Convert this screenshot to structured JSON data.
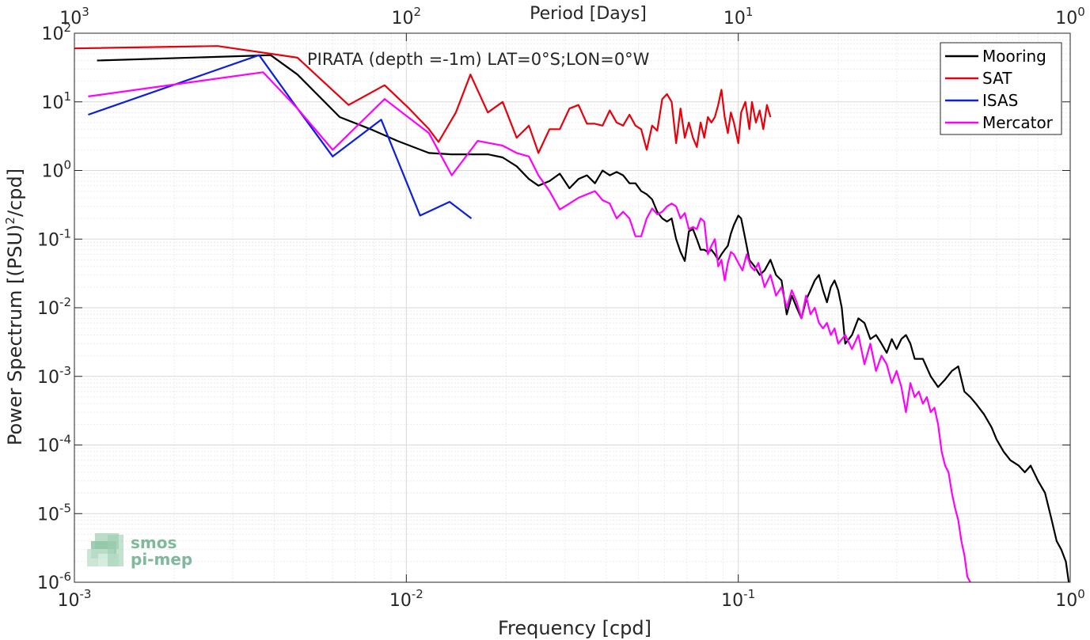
{
  "chart_data": {
    "type": "line",
    "title": "PIRATA (depth =-1m) LAT=0°S;LON=0°W",
    "xlabel": "Frequency [cpd]",
    "ylabel_main": "Power Spectrum [(PSU)",
    "ylabel_sup": "2",
    "ylabel_tail": "/cpd]",
    "top_xlabel": "Period [Days]",
    "x_scale": "log",
    "y_scale": "log",
    "xlim": [
      0.001,
      1
    ],
    "ylim": [
      1e-06,
      100
    ],
    "grid": true,
    "legend_position": "top-right",
    "x_ticks": [
      {
        "value": 0.001,
        "base": "10",
        "exp": "-3"
      },
      {
        "value": 0.01,
        "base": "10",
        "exp": "-2"
      },
      {
        "value": 0.1,
        "base": "10",
        "exp": "-1"
      },
      {
        "value": 1,
        "base": "10",
        "exp": "0"
      }
    ],
    "top_ticks": [
      {
        "value": 0.001,
        "base": "10",
        "exp": "3"
      },
      {
        "value": 0.01,
        "base": "10",
        "exp": "2"
      },
      {
        "value": 0.1,
        "base": "10",
        "exp": "1"
      },
      {
        "value": 1,
        "base": "10",
        "exp": "0"
      }
    ],
    "y_ticks": [
      {
        "value": 100,
        "base": "10",
        "exp": "2"
      },
      {
        "value": 10,
        "base": "10",
        "exp": "1"
      },
      {
        "value": 1,
        "base": "10",
        "exp": "0"
      },
      {
        "value": 0.1,
        "base": "10",
        "exp": "-1"
      },
      {
        "value": 0.01,
        "base": "10",
        "exp": "-2"
      },
      {
        "value": 0.001,
        "base": "10",
        "exp": "-3"
      },
      {
        "value": 0.0001,
        "base": "10",
        "exp": "-4"
      },
      {
        "value": 1e-05,
        "base": "10",
        "exp": "-5"
      },
      {
        "value": 1e-06,
        "base": "10",
        "exp": "-6"
      }
    ],
    "series": [
      {
        "name": "Mooring",
        "color": "#000000",
        "points": [
          [
            0.00117,
            40
          ],
          [
            0.0035,
            47
          ],
          [
            0.0039,
            48
          ],
          [
            0.0047,
            25
          ],
          [
            0.0063,
            6
          ],
          [
            0.0078,
            4
          ],
          [
            0.0094,
            2.7
          ],
          [
            0.0117,
            1.8
          ],
          [
            0.0137,
            1.72
          ],
          [
            0.0156,
            1.72
          ],
          [
            0.0176,
            1.72
          ],
          [
            0.0195,
            1.55
          ],
          [
            0.0215,
            1.15
          ],
          [
            0.0234,
            0.75
          ],
          [
            0.025,
            0.6
          ],
          [
            0.027,
            0.7
          ],
          [
            0.029,
            0.9
          ],
          [
            0.031,
            0.55
          ],
          [
            0.033,
            0.75
          ],
          [
            0.035,
            0.85
          ],
          [
            0.037,
            0.65
          ],
          [
            0.039,
            1.0
          ],
          [
            0.041,
            0.85
          ],
          [
            0.043,
            0.95
          ],
          [
            0.045,
            0.85
          ],
          [
            0.047,
            0.65
          ],
          [
            0.049,
            0.65
          ],
          [
            0.051,
            0.5
          ],
          [
            0.053,
            0.45
          ],
          [
            0.055,
            0.38
          ],
          [
            0.057,
            0.25
          ],
          [
            0.059,
            0.2
          ],
          [
            0.061,
            0.18
          ],
          [
            0.063,
            0.2
          ],
          [
            0.065,
            0.1
          ],
          [
            0.067,
            0.065
          ],
          [
            0.069,
            0.048
          ],
          [
            0.071,
            0.13
          ],
          [
            0.073,
            0.14
          ],
          [
            0.075,
            0.1
          ],
          [
            0.077,
            0.07
          ],
          [
            0.079,
            0.07
          ],
          [
            0.081,
            0.065
          ],
          [
            0.083,
            0.07
          ],
          [
            0.085,
            0.06
          ],
          [
            0.087,
            0.05
          ],
          [
            0.089,
            0.06
          ],
          [
            0.091,
            0.07
          ],
          [
            0.093,
            0.08
          ],
          [
            0.095,
            0.12
          ],
          [
            0.097,
            0.16
          ],
          [
            0.1,
            0.22
          ],
          [
            0.102,
            0.2
          ],
          [
            0.105,
            0.1
          ],
          [
            0.108,
            0.05
          ],
          [
            0.112,
            0.04
          ],
          [
            0.116,
            0.03
          ],
          [
            0.12,
            0.035
          ],
          [
            0.125,
            0.05
          ],
          [
            0.13,
            0.03
          ],
          [
            0.135,
            0.025
          ],
          [
            0.14,
            0.008
          ],
          [
            0.145,
            0.015
          ],
          [
            0.15,
            0.01
          ],
          [
            0.155,
            0.007
          ],
          [
            0.16,
            0.013
          ],
          [
            0.165,
            0.018
          ],
          [
            0.17,
            0.025
          ],
          [
            0.175,
            0.03
          ],
          [
            0.18,
            0.018
          ],
          [
            0.185,
            0.012
          ],
          [
            0.19,
            0.02
          ],
          [
            0.195,
            0.025
          ],
          [
            0.2,
            0.018
          ],
          [
            0.205,
            0.01
          ],
          [
            0.21,
            0.003
          ],
          [
            0.22,
            0.004
          ],
          [
            0.23,
            0.007
          ],
          [
            0.24,
            0.006
          ],
          [
            0.25,
            0.0035
          ],
          [
            0.26,
            0.004
          ],
          [
            0.27,
            0.003
          ],
          [
            0.28,
            0.0022
          ],
          [
            0.29,
            0.0035
          ],
          [
            0.3,
            0.0025
          ],
          [
            0.31,
            0.0035
          ],
          [
            0.32,
            0.004
          ],
          [
            0.33,
            0.003
          ],
          [
            0.34,
            0.0018
          ],
          [
            0.36,
            0.0018
          ],
          [
            0.38,
            0.001
          ],
          [
            0.4,
            0.0007
          ],
          [
            0.42,
            0.0009
          ],
          [
            0.44,
            0.0012
          ],
          [
            0.46,
            0.0014
          ],
          [
            0.48,
            0.0006
          ],
          [
            0.5,
            0.0005
          ],
          [
            0.52,
            0.0004
          ],
          [
            0.55,
            0.00028
          ],
          [
            0.58,
            0.00018
          ],
          [
            0.6,
            0.00012
          ],
          [
            0.63,
            8e-05
          ],
          [
            0.66,
            6e-05
          ],
          [
            0.7,
            5e-05
          ],
          [
            0.73,
            4e-05
          ],
          [
            0.76,
            5e-05
          ],
          [
            0.8,
            3e-05
          ],
          [
            0.84,
            2e-05
          ],
          [
            0.88,
            8e-06
          ],
          [
            0.91,
            4e-06
          ],
          [
            0.94,
            3e-06
          ],
          [
            0.97,
            2e-06
          ],
          [
            0.99,
            1e-06
          ]
        ]
      },
      {
        "name": "SAT",
        "color": "#e8000b",
        "points": [
          [
            0.001,
            60
          ],
          [
            0.0027,
            65
          ],
          [
            0.0047,
            44
          ],
          [
            0.0067,
            9
          ],
          [
            0.0086,
            17.5
          ],
          [
            0.0102,
            8
          ],
          [
            0.0117,
            4
          ],
          [
            0.0125,
            2.6
          ],
          [
            0.0141,
            7
          ],
          [
            0.0156,
            25
          ],
          [
            0.0176,
            7
          ],
          [
            0.0195,
            10
          ],
          [
            0.0215,
            3
          ],
          [
            0.0234,
            4.5
          ],
          [
            0.025,
            1.8
          ],
          [
            0.027,
            4
          ],
          [
            0.029,
            4
          ],
          [
            0.031,
            8
          ],
          [
            0.033,
            9
          ],
          [
            0.035,
            4.8
          ],
          [
            0.037,
            4.8
          ],
          [
            0.039,
            4.5
          ],
          [
            0.041,
            7.5
          ],
          [
            0.043,
            5
          ],
          [
            0.045,
            4.5
          ],
          [
            0.047,
            6.5
          ],
          [
            0.049,
            4.5
          ],
          [
            0.051,
            4
          ],
          [
            0.053,
            2
          ],
          [
            0.055,
            4.5
          ],
          [
            0.057,
            3.8
          ],
          [
            0.059,
            11
          ],
          [
            0.061,
            13
          ],
          [
            0.063,
            10
          ],
          [
            0.065,
            2.5
          ],
          [
            0.067,
            8
          ],
          [
            0.069,
            3
          ],
          [
            0.071,
            5
          ],
          [
            0.073,
            3
          ],
          [
            0.075,
            2.2
          ],
          [
            0.077,
            5
          ],
          [
            0.079,
            3
          ],
          [
            0.081,
            6
          ],
          [
            0.083,
            5
          ],
          [
            0.085,
            6
          ],
          [
            0.087,
            9
          ],
          [
            0.089,
            15
          ],
          [
            0.091,
            6
          ],
          [
            0.093,
            3.5
          ],
          [
            0.095,
            7
          ],
          [
            0.097,
            5
          ],
          [
            0.1,
            2.5
          ],
          [
            0.102,
            7
          ],
          [
            0.105,
            10
          ],
          [
            0.108,
            4
          ],
          [
            0.11,
            10
          ],
          [
            0.113,
            5
          ],
          [
            0.116,
            7.5
          ],
          [
            0.119,
            4
          ],
          [
            0.122,
            9
          ],
          [
            0.125,
            6
          ]
        ]
      },
      {
        "name": "ISAS",
        "color": "#0a1fe0",
        "points": [
          [
            0.0011,
            6.5
          ],
          [
            0.0036,
            48
          ],
          [
            0.0047,
            8
          ],
          [
            0.006,
            1.6
          ],
          [
            0.0084,
            5.5
          ],
          [
            0.011,
            0.22
          ],
          [
            0.0135,
            0.35
          ],
          [
            0.0157,
            0.2
          ]
        ]
      },
      {
        "name": "Mercator",
        "color": "#ff00ff",
        "points": [
          [
            0.0011,
            12
          ],
          [
            0.0037,
            27
          ],
          [
            0.0047,
            8
          ],
          [
            0.006,
            2
          ],
          [
            0.0086,
            11
          ],
          [
            0.0117,
            3.5
          ],
          [
            0.0137,
            0.85
          ],
          [
            0.0164,
            2.7
          ],
          [
            0.0195,
            2.3
          ],
          [
            0.0215,
            1.8
          ],
          [
            0.0234,
            1.6
          ],
          [
            0.025,
            0.85
          ],
          [
            0.027,
            0.5
          ],
          [
            0.029,
            0.27
          ],
          [
            0.031,
            0.33
          ],
          [
            0.033,
            0.4
          ],
          [
            0.035,
            0.45
          ],
          [
            0.037,
            0.5
          ],
          [
            0.039,
            0.37
          ],
          [
            0.041,
            0.33
          ],
          [
            0.043,
            0.2
          ],
          [
            0.045,
            0.25
          ],
          [
            0.047,
            0.2
          ],
          [
            0.049,
            0.11
          ],
          [
            0.051,
            0.11
          ],
          [
            0.053,
            0.2
          ],
          [
            0.055,
            0.28
          ],
          [
            0.057,
            0.23
          ],
          [
            0.059,
            0.25
          ],
          [
            0.061,
            0.3
          ],
          [
            0.063,
            0.33
          ],
          [
            0.065,
            0.3
          ],
          [
            0.067,
            0.2
          ],
          [
            0.069,
            0.24
          ],
          [
            0.071,
            0.14
          ],
          [
            0.073,
            0.15
          ],
          [
            0.075,
            0.14
          ],
          [
            0.077,
            0.2
          ],
          [
            0.079,
            0.18
          ],
          [
            0.081,
            0.06
          ],
          [
            0.083,
            0.08
          ],
          [
            0.085,
            0.1
          ],
          [
            0.087,
            0.04
          ],
          [
            0.089,
            0.05
          ],
          [
            0.091,
            0.025
          ],
          [
            0.093,
            0.045
          ],
          [
            0.095,
            0.065
          ],
          [
            0.097,
            0.06
          ],
          [
            0.1,
            0.045
          ],
          [
            0.103,
            0.035
          ],
          [
            0.106,
            0.06
          ],
          [
            0.109,
            0.04
          ],
          [
            0.112,
            0.035
          ],
          [
            0.115,
            0.045
          ],
          [
            0.12,
            0.02
          ],
          [
            0.125,
            0.03
          ],
          [
            0.13,
            0.015
          ],
          [
            0.135,
            0.02
          ],
          [
            0.14,
            0.01
          ],
          [
            0.145,
            0.018
          ],
          [
            0.15,
            0.012
          ],
          [
            0.155,
            0.007
          ],
          [
            0.16,
            0.015
          ],
          [
            0.165,
            0.008
          ],
          [
            0.17,
            0.01
          ],
          [
            0.175,
            0.006
          ],
          [
            0.18,
            0.005
          ],
          [
            0.185,
            0.006
          ],
          [
            0.19,
            0.004
          ],
          [
            0.195,
            0.005
          ],
          [
            0.2,
            0.003
          ],
          [
            0.21,
            0.004
          ],
          [
            0.22,
            0.0025
          ],
          [
            0.23,
            0.004
          ],
          [
            0.24,
            0.0015
          ],
          [
            0.25,
            0.003
          ],
          [
            0.26,
            0.0012
          ],
          [
            0.27,
            0.002
          ],
          [
            0.28,
            0.0015
          ],
          [
            0.29,
            0.0008
          ],
          [
            0.3,
            0.0012
          ],
          [
            0.31,
            0.0007
          ],
          [
            0.32,
            0.0003
          ],
          [
            0.33,
            0.0008
          ],
          [
            0.34,
            0.0005
          ],
          [
            0.35,
            0.0006
          ],
          [
            0.36,
            0.0004
          ],
          [
            0.37,
            0.0005
          ],
          [
            0.38,
            0.0003
          ],
          [
            0.39,
            0.00035
          ],
          [
            0.4,
            0.0002
          ],
          [
            0.41,
            8e-05
          ],
          [
            0.42,
            5e-05
          ],
          [
            0.43,
            4e-05
          ],
          [
            0.44,
            2e-05
          ],
          [
            0.45,
            1.2e-05
          ],
          [
            0.46,
            8e-06
          ],
          [
            0.47,
            4e-06
          ],
          [
            0.48,
            2.5e-06
          ],
          [
            0.49,
            1.2e-06
          ],
          [
            0.5,
            1e-06
          ]
        ]
      }
    ]
  },
  "watermark": {
    "line1": "smos",
    "line2": "pi-mep"
  }
}
